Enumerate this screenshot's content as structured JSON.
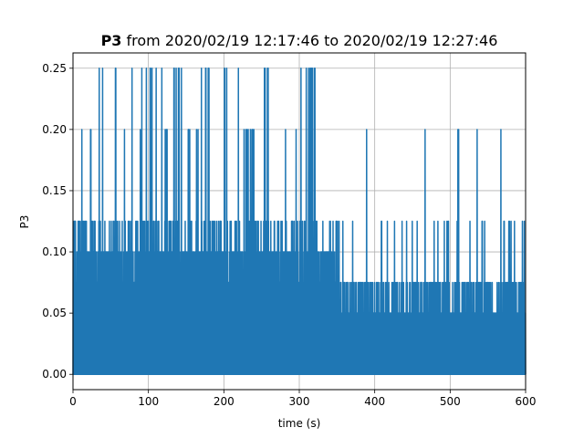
{
  "chart_data": {
    "type": "line",
    "title_bold": "P3",
    "title_rest": " from 2020/02/19 12:17:46 to 2020/02/19 12:27:46",
    "xlabel": "time (s)",
    "ylabel": "P3",
    "xlim": [
      0,
      600
    ],
    "ylim": [
      -0.0125,
      0.2625
    ],
    "grid": true,
    "legend": "none",
    "x_ticks": [
      0,
      100,
      200,
      300,
      400,
      500,
      600
    ],
    "x_tick_labels": [
      "0",
      "100",
      "200",
      "300",
      "400",
      "500",
      "600"
    ],
    "y_ticks": [
      0.0,
      0.05,
      0.1,
      0.15,
      0.2,
      0.25
    ],
    "y_tick_labels": [
      "0.00",
      "0.05",
      "0.10",
      "0.15",
      "0.20",
      "0.25"
    ],
    "series": [
      {
        "color": "#1f77b4",
        "value_levels": [
          0,
          0.025,
          0.05,
          0.075,
          0.1,
          0.125,
          0.15,
          0.175,
          0.2,
          0.25
        ],
        "x_range": [
          0,
          600
        ],
        "envelope_x": [
          0,
          2,
          5,
          10,
          20,
          30,
          40,
          50,
          60,
          70,
          80,
          90,
          100,
          110,
          120,
          130,
          140,
          150,
          160,
          170,
          180,
          190,
          200,
          210,
          220,
          230,
          240,
          250,
          260,
          270,
          280,
          290,
          300,
          310,
          320,
          330,
          340,
          350,
          360,
          370,
          380,
          390,
          400,
          410,
          420,
          430,
          440,
          450,
          460,
          470,
          480,
          490,
          500,
          510,
          520,
          530,
          540,
          550,
          560,
          570,
          580,
          590,
          600
        ],
        "envelope_max": [
          0.125,
          0.2,
          0.125,
          0.2,
          0.2,
          0.25,
          0.2,
          0.25,
          0.2,
          0.25,
          0.2,
          0.25,
          0.25,
          0.25,
          0.2,
          0.25,
          0.25,
          0.2,
          0.2,
          0.25,
          0.25,
          0.25,
          0.25,
          0.25,
          0.2,
          0.2,
          0.125,
          0.25,
          0.125,
          0.125,
          0.2,
          0.2,
          0.25,
          0.25,
          0.25,
          0.2,
          0.125,
          0.125,
          0.2,
          0.125,
          0.2,
          0.25,
          0.125,
          0.125,
          0.125,
          0.125,
          0.125,
          0.125,
          0.2,
          0.125,
          0.125,
          0.125,
          0.125,
          0.2,
          0.125,
          0.2,
          0.125,
          0.125,
          0.2,
          0.125,
          0.125,
          0.125,
          0.075
        ],
        "dense_band_max": [
          0.125,
          0.125,
          0.125,
          0.125,
          0.125,
          0.125,
          0.125,
          0.125,
          0.125,
          0.125,
          0.125,
          0.125,
          0.125,
          0.125,
          0.125,
          0.125,
          0.125,
          0.125,
          0.125,
          0.125,
          0.125,
          0.125,
          0.125,
          0.125,
          0.125,
          0.125,
          0.125,
          0.125,
          0.125,
          0.125,
          0.125,
          0.125,
          0.125,
          0.125,
          0.125,
          0.125,
          0.125,
          0.075,
          0.075,
          0.075,
          0.075,
          0.075,
          0.075,
          0.075,
          0.075,
          0.075,
          0.075,
          0.075,
          0.075,
          0.075,
          0.075,
          0.075,
          0.075,
          0.075,
          0.075,
          0.075,
          0.075,
          0.075,
          0.075,
          0.075,
          0.075,
          0.075,
          0.075
        ]
      }
    ]
  }
}
